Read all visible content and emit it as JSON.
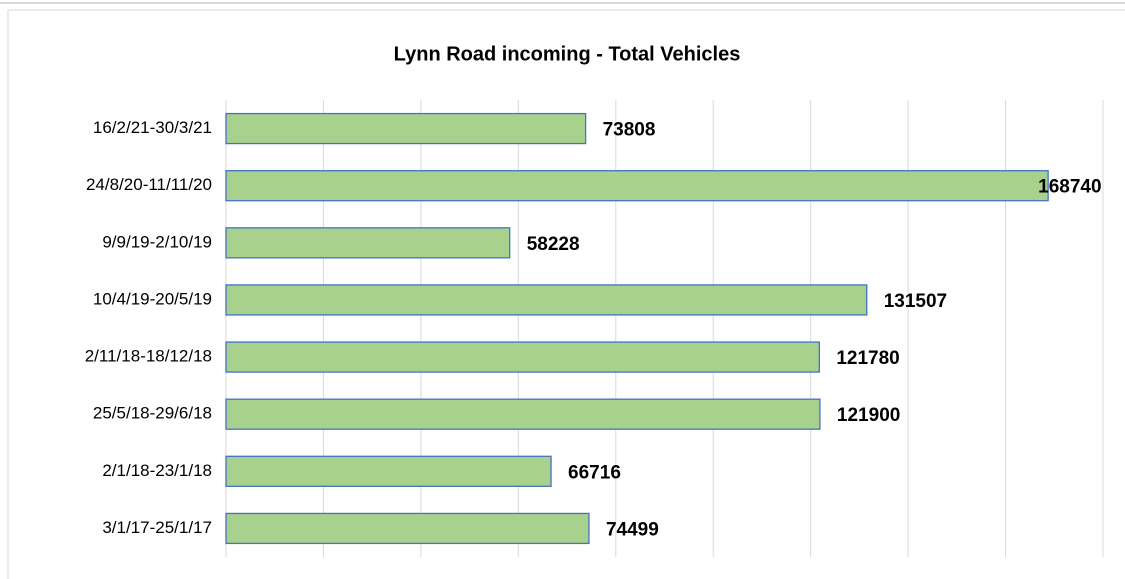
{
  "chart_data": {
    "type": "bar",
    "orientation": "horizontal",
    "title": "Lynn Road incoming - Total Vehicles",
    "categories": [
      "16/2/21-30/3/21",
      "24/8/20-11/11/20",
      "9/9/19-2/10/19",
      "10/4/19-20/5/19",
      "2/11/18-18/12/18",
      "25/5/18-29/6/18",
      "2/1/18-23/1/18",
      "3/1/17-25/1/17"
    ],
    "values": [
      73808,
      168740,
      58228,
      131507,
      121780,
      121900,
      66716,
      74499
    ],
    "color": "#a9d18e",
    "edge_color": "#4472c4",
    "xlim": [
      0,
      180000
    ],
    "xticks": [
      0,
      20000,
      40000,
      60000,
      80000,
      100000,
      120000,
      140000,
      160000,
      180000
    ],
    "grid": true
  }
}
